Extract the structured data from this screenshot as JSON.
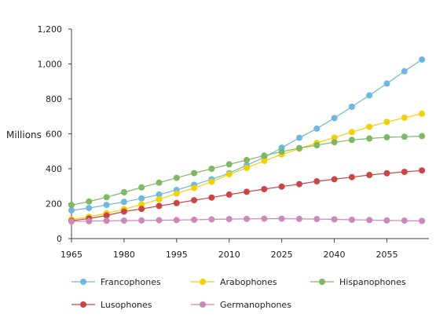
{
  "chart_data": {
    "type": "line",
    "title": "",
    "xlabel": "",
    "ylabel": "Millions",
    "x": [
      1965,
      1970,
      1975,
      1980,
      1985,
      1990,
      1995,
      2000,
      2005,
      2010,
      2015,
      2020,
      2025,
      2030,
      2035,
      2040,
      2045,
      2050,
      2055,
      2060,
      2065
    ],
    "x_ticks": [
      "1965",
      "1980",
      "1995",
      "2010",
      "2025",
      "2040",
      "2055"
    ],
    "y_ticks": [
      "0",
      "200",
      "400",
      "600",
      "800",
      "1,000",
      "1,200"
    ],
    "xlim": [
      1965,
      2067
    ],
    "ylim": [
      0,
      1200
    ],
    "grid": false,
    "legend_position": "bottom",
    "series": [
      {
        "name": "Francophones",
        "color": "#6cb8e0",
        "values": [
          162,
          175,
          193,
          210,
          230,
          252,
          278,
          308,
          340,
          375,
          420,
          465,
          520,
          577,
          630,
          690,
          755,
          820,
          888,
          958,
          1025
        ]
      },
      {
        "name": "Arabophones",
        "color": "#f5d000",
        "values": [
          110,
          125,
          145,
          168,
          195,
          225,
          258,
          290,
          325,
          368,
          405,
          445,
          482,
          515,
          548,
          578,
          610,
          640,
          668,
          692,
          715
        ]
      },
      {
        "name": "Hispanophones",
        "color": "#7fb862",
        "values": [
          192,
          212,
          237,
          265,
          293,
          320,
          348,
          375,
          400,
          425,
          450,
          475,
          498,
          518,
          535,
          552,
          565,
          573,
          580,
          583,
          587
        ]
      },
      {
        "name": "Lusophones",
        "color": "#cc4444",
        "values": [
          102,
          115,
          132,
          155,
          170,
          187,
          203,
          220,
          235,
          252,
          268,
          283,
          298,
          312,
          328,
          340,
          352,
          364,
          374,
          382,
          390
        ]
      },
      {
        "name": "Germanophones",
        "color": "#cc88b8",
        "values": [
          98,
          100,
          102,
          103,
          104,
          105,
          106,
          108,
          110,
          112,
          113,
          114,
          114,
          113,
          112,
          110,
          108,
          106,
          104,
          103,
          101
        ]
      }
    ]
  }
}
